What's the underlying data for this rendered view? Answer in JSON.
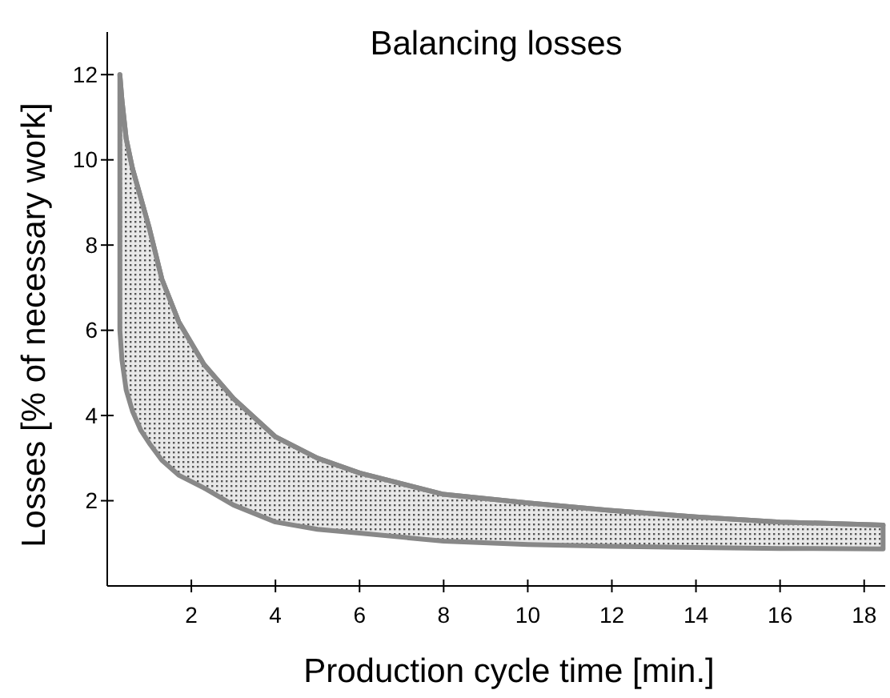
{
  "chart_data": {
    "type": "line",
    "title": "Balancing losses",
    "xlabel": "Production cycle time [min.]",
    "ylabel": "Losses [% of necessary work]",
    "xlim": [
      0,
      18.5
    ],
    "ylim": [
      0,
      13
    ],
    "xticks": [
      2,
      4,
      6,
      8,
      10,
      12,
      14,
      16,
      18
    ],
    "yticks": [
      2,
      4,
      6,
      8,
      10,
      12
    ],
    "grid": false,
    "series": [
      {
        "color": "#888888",
        "x": [
          0.3,
          0.35,
          0.45,
          0.6,
          0.8,
          1,
          1.3,
          1.7,
          2.3,
          3,
          4,
          5,
          6,
          8,
          10,
          12,
          14,
          16,
          18.45
        ],
        "values": [
          12,
          11.4,
          10.5,
          9.8,
          9.1,
          8.4,
          7.2,
          6.2,
          5.2,
          4.4,
          3.5,
          3.0,
          2.65,
          2.15,
          1.95,
          1.77,
          1.62,
          1.5,
          1.43
        ],
        "upper": [
          12,
          11.4,
          10.5,
          9.8,
          9.1,
          8.4,
          7.2,
          6.2,
          5.2,
          4.4,
          3.5,
          3.0,
          2.65,
          2.15,
          1.95,
          1.77,
          1.62,
          1.5,
          1.43
        ],
        "lower": [
          6.0,
          5.3,
          4.6,
          4.1,
          3.65,
          3.35,
          2.95,
          2.6,
          2.3,
          1.9,
          1.5,
          1.33,
          1.24,
          1.05,
          0.97,
          0.93,
          0.9,
          0.88,
          0.87
        ]
      }
    ]
  }
}
